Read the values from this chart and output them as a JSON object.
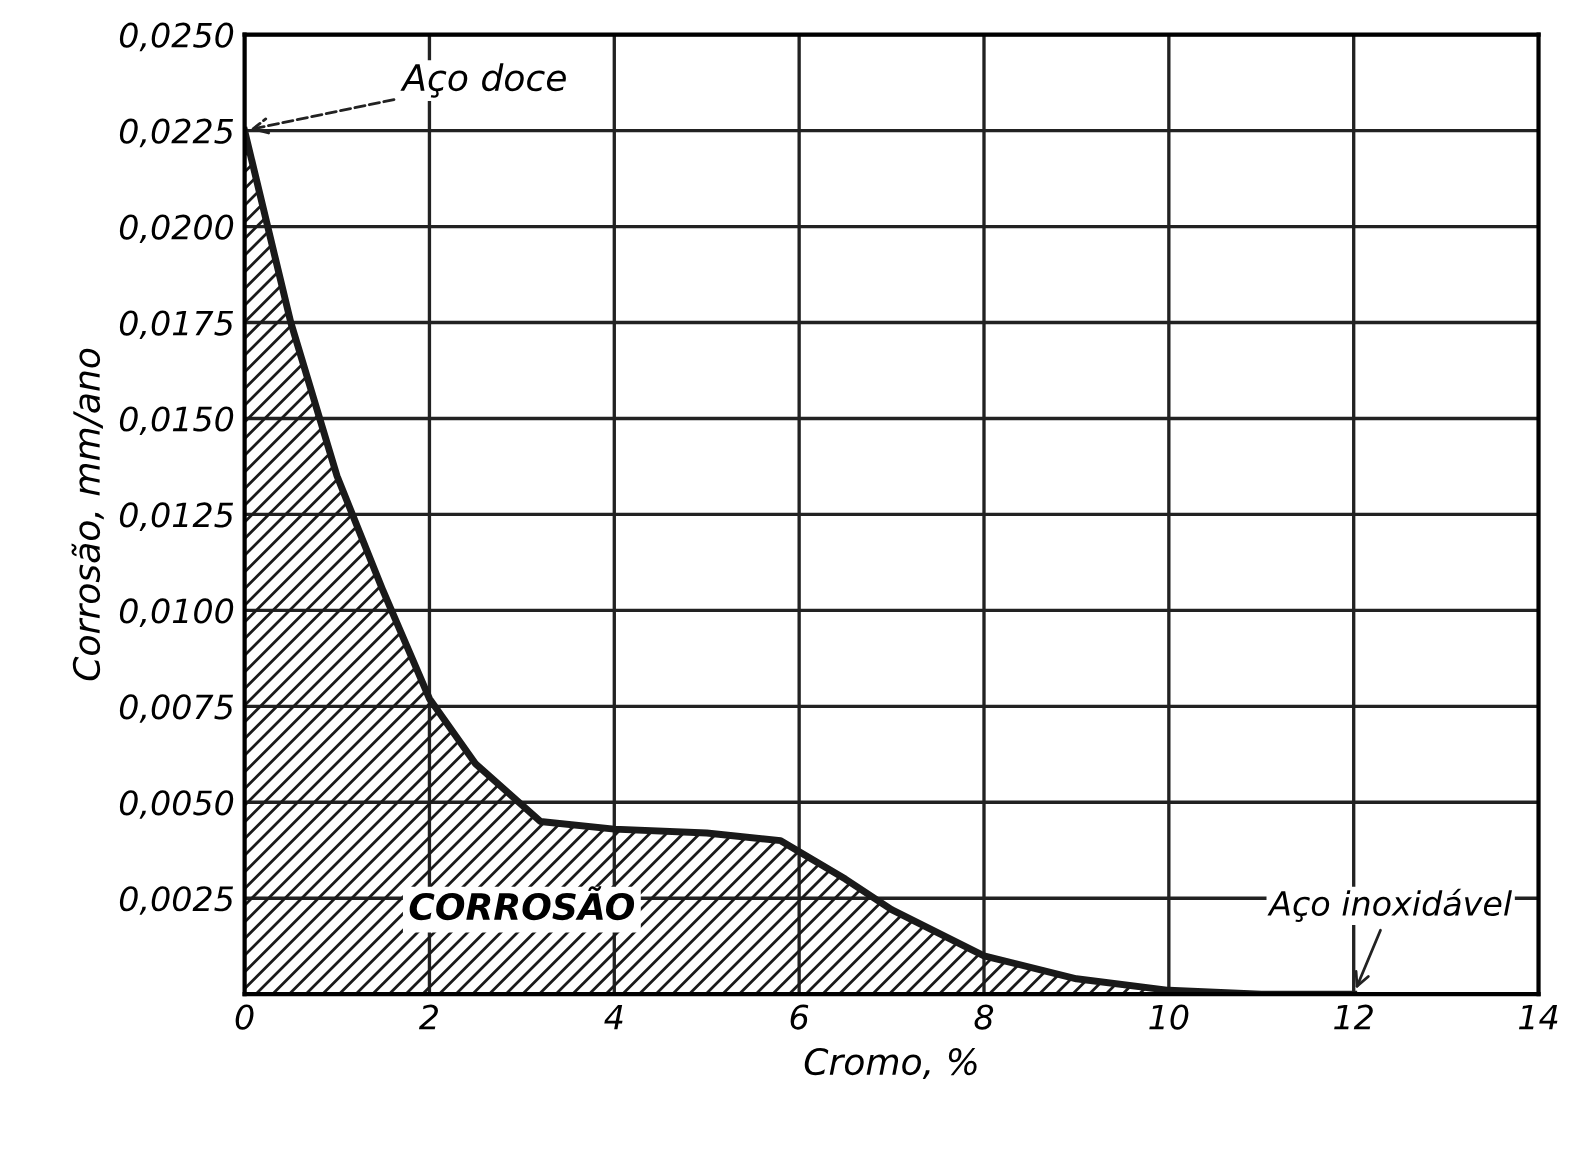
{
  "chart_data": {
    "type": "area",
    "xlabel": "Cromo, %",
    "ylabel": "Corrosão, mm/ano",
    "x": [
      0,
      0.5,
      1,
      1.5,
      2,
      2.5,
      3.2,
      4,
      5,
      5.8,
      6.5,
      7,
      8,
      9,
      10,
      11,
      12
    ],
    "series": [
      {
        "color": "#1a1a1a",
        "values": [
          0.0225,
          0.0175,
          0.0135,
          0.0105,
          0.0077,
          0.006,
          0.0045,
          0.0043,
          0.0042,
          0.004,
          0.003,
          0.0022,
          0.001,
          0.0004,
          0.0001,
          0.0,
          0.0
        ]
      }
    ],
    "xlim": [
      0,
      14
    ],
    "xticks": [
      0,
      2,
      4,
      6,
      8,
      10,
      12,
      14
    ],
    "ylim": [
      0,
      0.025
    ],
    "yticks": [
      {
        "value": 0,
        "label": null
      },
      {
        "value": 0.0025,
        "label": "0,0025"
      },
      {
        "value": 0.005,
        "label": "0,0050"
      },
      {
        "value": 0.0075,
        "label": "0,0075"
      },
      {
        "value": 0.01,
        "label": "0,0100"
      },
      {
        "value": 0.0125,
        "label": "0,0125"
      },
      {
        "value": 0.015,
        "label": "0,0150"
      },
      {
        "value": 0.0175,
        "label": "0,0175"
      },
      {
        "value": 0.02,
        "label": "0,0200"
      },
      {
        "value": 0.0225,
        "label": "0,0225"
      },
      {
        "value": 0.025,
        "label": "0,0250"
      }
    ],
    "grid": true,
    "annotations": [
      {
        "text": "Aço doce",
        "x": 0,
        "y": 0.0225
      },
      {
        "text": "Aço inoxidável",
        "x": 12,
        "y": 0
      },
      "CORROSÃO"
    ]
  }
}
